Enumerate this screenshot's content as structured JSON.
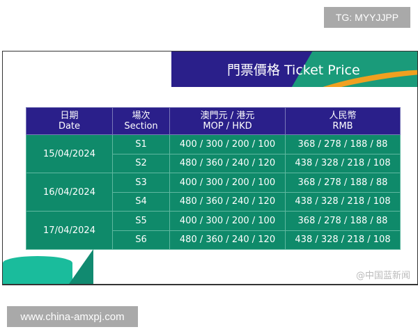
{
  "tg_label": "TG: MYYJJPP",
  "title": "門票價格 Ticket Price",
  "headers": [
    {
      "zh": "日期",
      "en": "Date"
    },
    {
      "zh": "場次",
      "en": "Section"
    },
    {
      "zh": "澳門元 / 港元",
      "en": "MOP / HKD"
    },
    {
      "zh": "人民幣",
      "en": "RMB"
    }
  ],
  "rows": [
    {
      "date": "15/04/2024",
      "section": "S1",
      "mop": "400 / 300 /  200 / 100",
      "rmb": "368 / 278 / 188 / 88"
    },
    {
      "section": "S2",
      "mop": "480 / 360 / 240 / 120",
      "rmb": "438 / 328 / 218 / 108"
    },
    {
      "date": "16/04/2024",
      "section": "S3",
      "mop": "400 / 300 / 200 / 100",
      "rmb": "368 / 278 / 188 / 88"
    },
    {
      "section": "S4",
      "mop": "480 / 360 / 240 / 120",
      "rmb": "438 / 328 / 218 / 108"
    },
    {
      "date": "17/04/2024",
      "section": "S5",
      "mop": "400 / 300 / 200 / 100",
      "rmb": "368 / 278 / 188 / 88"
    },
    {
      "section": "S6",
      "mop": "480 / 360 / 240 / 120",
      "rmb": "438 / 328 / 218 / 108"
    }
  ],
  "watermark": "@中国蓝新闻",
  "url": "www.china-amxpj.com"
}
